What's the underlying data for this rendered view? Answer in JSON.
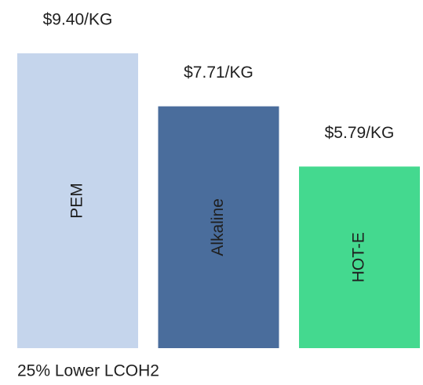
{
  "chart_data": {
    "type": "bar",
    "categories": [
      "PEM",
      "Alkaline",
      "HOT-E"
    ],
    "values": [
      9.4,
      7.71,
      5.79
    ],
    "value_labels": [
      "$9.40/KG",
      "$7.71/KG",
      "$5.79/KG"
    ],
    "colors": [
      "#c5d5ec",
      "#4a6d9c",
      "#44d98f"
    ],
    "annotation": "25% Lower LCOH2"
  }
}
